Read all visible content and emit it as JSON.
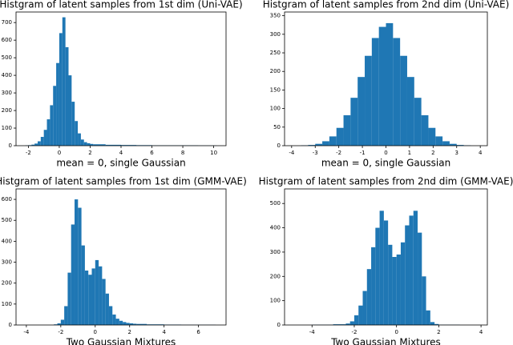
{
  "chart_data": [
    {
      "type": "histogram",
      "title": "Histgram of latent samples from 1st dim (Uni-VAE)",
      "x_label": "mean = 0, single Gaussian",
      "color": "#1f77b4",
      "bins": [
        -2.2,
        -2,
        -1.8,
        -1.6,
        -1.4,
        -1.2,
        -1,
        -0.8,
        -0.6,
        -0.4,
        -0.2,
        0,
        0.2,
        0.4,
        0.6,
        0.8,
        1,
        1.2,
        1.4,
        1.6,
        1.8,
        2,
        2.2,
        3,
        4,
        5,
        6,
        7,
        8,
        9,
        10.2
      ],
      "counts": [
        2,
        3,
        6,
        12,
        25,
        50,
        90,
        150,
        230,
        340,
        470,
        640,
        730,
        560,
        400,
        250,
        140,
        70,
        35,
        20,
        14,
        10,
        8,
        5,
        4,
        3,
        2,
        2,
        2,
        1
      ],
      "xlim": [
        -2.8,
        10.8
      ],
      "xticks": [
        -2,
        0,
        2,
        4,
        6,
        8,
        10
      ],
      "ylim": [
        0,
        760
      ],
      "yticks": [
        0,
        100,
        200,
        300,
        400,
        500,
        600,
        700
      ]
    },
    {
      "type": "histogram",
      "title": "Histgram of latent samples from 2nd dim (Uni-VAE)",
      "x_label": "mean = 0, single Gaussian",
      "color": "#1f77b4",
      "bins": [
        -3.6,
        -3.3,
        -3,
        -2.7,
        -2.4,
        -2.1,
        -1.8,
        -1.5,
        -1.2,
        -0.9,
        -0.6,
        -0.3,
        0,
        0.3,
        0.6,
        0.9,
        1.2,
        1.5,
        1.8,
        2.1,
        2.4,
        2.7,
        3,
        3.3,
        3.6
      ],
      "counts": [
        1,
        2,
        5,
        12,
        25,
        48,
        82,
        129,
        185,
        242,
        290,
        320,
        330,
        290,
        242,
        185,
        129,
        82,
        48,
        25,
        12,
        5,
        2,
        1
      ],
      "xlim": [
        -4.3,
        4.3
      ],
      "xticks": [
        -4,
        -3,
        -2,
        -1,
        0,
        1,
        2,
        3,
        4
      ],
      "ylim": [
        0,
        360
      ],
      "yticks": [
        0,
        50,
        100,
        150,
        200,
        250,
        300,
        350
      ]
    },
    {
      "type": "histogram",
      "title": "Histgram of latent samples from 1st dim (GMM-VAE)",
      "x_label": "Two Gaussian Mixtures",
      "color": "#1f77b4",
      "bins": [
        -2.4,
        -2.2,
        -2,
        -1.8,
        -1.6,
        -1.4,
        -1.2,
        -1,
        -0.8,
        -0.6,
        -0.4,
        -0.2,
        0,
        0.2,
        0.4,
        0.6,
        0.8,
        1,
        1.2,
        1.4,
        1.6,
        1.8,
        2,
        2.2,
        2.4,
        3,
        4,
        5,
        7
      ],
      "counts": [
        3,
        8,
        25,
        90,
        250,
        480,
        600,
        560,
        380,
        260,
        240,
        270,
        310,
        280,
        220,
        150,
        90,
        50,
        30,
        20,
        14,
        10,
        8,
        6,
        5,
        3,
        2,
        1
      ],
      "xlim": [
        -4.6,
        7.6
      ],
      "xticks": [
        -4,
        -2,
        0,
        2,
        4,
        6
      ],
      "ylim": [
        0,
        650
      ],
      "yticks": [
        0,
        100,
        200,
        300,
        400,
        500,
        600
      ]
    },
    {
      "type": "histogram",
      "title": "Histgram of latent samples from 2nd dim (GMM-VAE)",
      "x_label": "Two Gaussian Mixtures",
      "color": "#1f77b4",
      "bins": [
        -4,
        -3,
        -2.4,
        -2.2,
        -2,
        -1.8,
        -1.6,
        -1.4,
        -1.2,
        -1,
        -0.8,
        -0.6,
        -0.4,
        -0.2,
        0,
        0.2,
        0.4,
        0.6,
        0.8,
        1,
        1.2,
        1.4,
        1.6,
        1.8,
        2,
        3
      ],
      "counts": [
        1,
        3,
        6,
        15,
        40,
        80,
        140,
        230,
        320,
        400,
        470,
        430,
        330,
        280,
        290,
        340,
        410,
        450,
        470,
        380,
        200,
        60,
        12,
        4,
        1
      ],
      "xlim": [
        -5.3,
        4.3
      ],
      "xticks": [
        -4,
        -2,
        0,
        2,
        4
      ],
      "ylim": [
        0,
        560
      ],
      "yticks": [
        0,
        100,
        200,
        300,
        400,
        500
      ]
    }
  ]
}
